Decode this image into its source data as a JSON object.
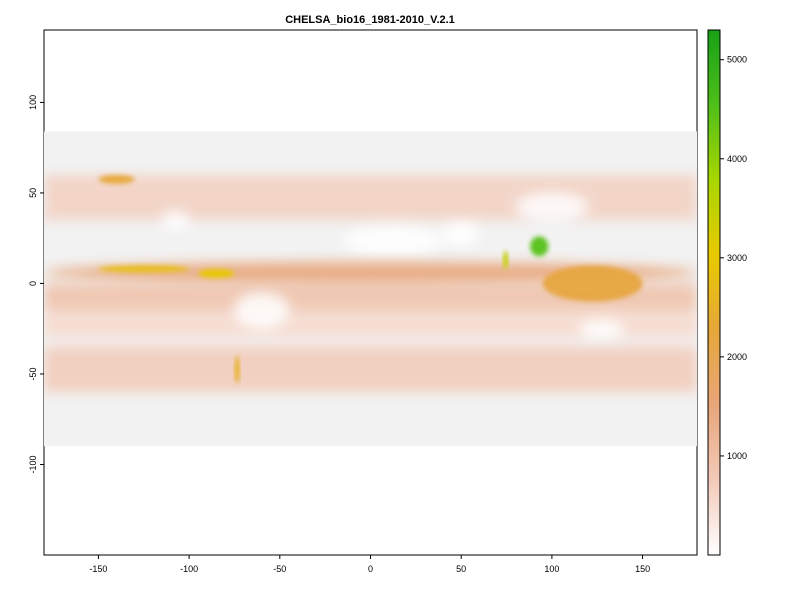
{
  "title": "CHELSA_bio16_1981-2010_V.2.1",
  "map": {
    "extent": {
      "xmin": -180,
      "xmax": 180,
      "ymin": -90,
      "ymax": 84
    },
    "background_color": "#f2f2f2",
    "features": [
      {
        "name": "itcz-band",
        "lon": [
          -180,
          180
        ],
        "lat": [
          0,
          12
        ],
        "value": 1500
      },
      {
        "name": "east-pacific-itcz-max",
        "lon": [
          -150,
          -100
        ],
        "lat": [
          6,
          10
        ],
        "value": 2800
      },
      {
        "name": "panama-colombia-max",
        "lon": [
          -95,
          -75
        ],
        "lat": [
          3,
          8
        ],
        "value": 3000
      },
      {
        "name": "alaska-coast",
        "lon": [
          -150,
          -130
        ],
        "lat": [
          55,
          60
        ],
        "value": 2300
      },
      {
        "name": "southern-chile",
        "lon": [
          -75,
          -72
        ],
        "lat": [
          -55,
          -40
        ],
        "value": 2500
      },
      {
        "name": "western-ghats",
        "lon": [
          73,
          76
        ],
        "lat": [
          8,
          18
        ],
        "value": 3500
      },
      {
        "name": "bay-of-bengal-myanmar",
        "lon": [
          88,
          98
        ],
        "lat": [
          15,
          26
        ],
        "value": 4500
      },
      {
        "name": "maritime-continent",
        "lon": [
          95,
          150
        ],
        "lat": [
          -10,
          10
        ],
        "value": 2200
      }
    ]
  },
  "x_axis": {
    "ticks": [
      -150,
      -100,
      -50,
      0,
      50,
      100,
      150
    ],
    "labels": [
      "-150",
      "-100",
      "-50",
      "0",
      "50",
      "100",
      "150"
    ],
    "range": [
      -180,
      180
    ]
  },
  "y_axis": {
    "ticks": [
      -100,
      -50,
      0,
      50,
      100
    ],
    "labels": [
      "-100",
      "-50",
      "0",
      "50",
      "100"
    ],
    "range": [
      -150,
      140
    ]
  },
  "legend": {
    "min": 0,
    "max": 5300,
    "ticks": [
      1000,
      2000,
      3000,
      4000,
      5000
    ],
    "labels": [
      "1000",
      "2000",
      "3000",
      "4000",
      "5000"
    ],
    "colors": [
      "#ffffff",
      "#f2c9b8",
      "#e8a57a",
      "#e6a63a",
      "#e8c900",
      "#a8d600",
      "#4fbf1a",
      "#17a117"
    ]
  }
}
